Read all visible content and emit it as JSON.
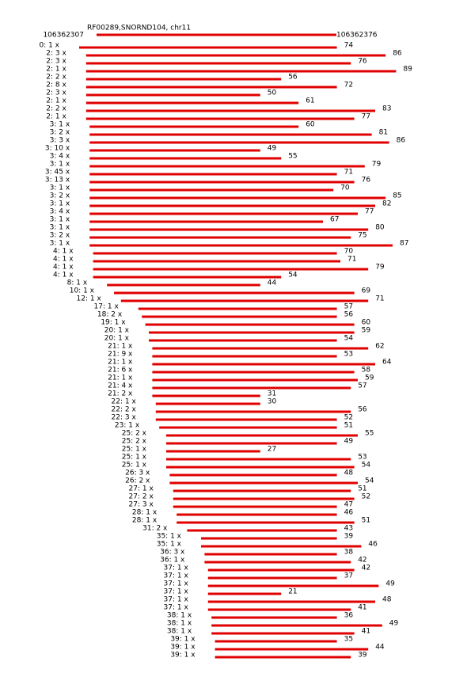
{
  "header": {
    "title": "RF00289,SNORND104, chr11",
    "start": "106362307",
    "end": "106362376"
  },
  "rows": [
    {
      "label": "0: 1 x",
      "length": 74
    },
    {
      "label": "2: 3 x",
      "length": 86
    },
    {
      "label": "2: 3 x",
      "length": 76
    },
    {
      "label": "2: 1 x",
      "length": 89
    },
    {
      "label": "2: 2 x",
      "length": 56
    },
    {
      "label": "2: 8 x",
      "length": 72
    },
    {
      "label": "2: 3 x",
      "length": 50
    },
    {
      "label": "2: 1 x",
      "length": 61
    },
    {
      "label": "2: 2 x",
      "length": 83
    },
    {
      "label": "2: 1 x",
      "length": 77
    },
    {
      "label": "3: 1 x",
      "length": 60
    },
    {
      "label": "3: 2 x",
      "length": 81
    },
    {
      "label": "3: 3 x",
      "length": 86
    },
    {
      "label": "3: 10 x",
      "length": 49
    },
    {
      "label": "3: 4 x",
      "length": 55
    },
    {
      "label": "3: 1 x",
      "length": 79
    },
    {
      "label": "3: 45 x",
      "length": 71
    },
    {
      "label": "3: 13 x",
      "length": 76
    },
    {
      "label": "3: 1 x",
      "length": 70
    },
    {
      "label": "3: 2 x",
      "length": 85
    },
    {
      "label": "3: 1 x",
      "length": 82
    },
    {
      "label": "3: 4 x",
      "length": 77
    },
    {
      "label": "3: 1 x",
      "length": 67
    },
    {
      "label": "3: 1 x",
      "length": 80
    },
    {
      "label": "3: 2 x",
      "length": 75
    },
    {
      "label": "3: 1 x",
      "length": 87
    },
    {
      "label": "4: 1 x",
      "length": 70
    },
    {
      "label": "4: 1 x",
      "length": 71
    },
    {
      "label": "4: 1 x",
      "length": 79
    },
    {
      "label": "4: 1 x",
      "length": 54
    },
    {
      "label": "8: 1 x",
      "length": 44
    },
    {
      "label": "10: 1 x",
      "length": 69
    },
    {
      "label": "12: 1 x",
      "length": 71
    },
    {
      "label": "17: 1 x",
      "length": 57
    },
    {
      "label": "18: 2 x",
      "length": 56
    },
    {
      "label": "19: 1 x",
      "length": 60
    },
    {
      "label": "20: 1 x",
      "length": 59
    },
    {
      "label": "20: 1 x",
      "length": 54
    },
    {
      "label": "21: 1 x",
      "length": 62
    },
    {
      "label": "21: 9 x",
      "length": 53
    },
    {
      "label": "21: 1 x",
      "length": 64
    },
    {
      "label": "21: 6 x",
      "length": 58
    },
    {
      "label": "21: 1 x",
      "length": 59
    },
    {
      "label": "21: 4 x",
      "length": 57
    },
    {
      "label": "21: 2 x",
      "length": 31
    },
    {
      "label": "22: 1 x",
      "length": 30
    },
    {
      "label": "22: 2 x",
      "length": 56
    },
    {
      "label": "22: 3 x",
      "length": 52
    },
    {
      "label": "23: 1 x",
      "length": 51
    },
    {
      "label": "25: 2 x",
      "length": 55
    },
    {
      "label": "25: 2 x",
      "length": 49
    },
    {
      "label": "25: 1 x",
      "length": 27
    },
    {
      "label": "25: 1 x",
      "length": 53
    },
    {
      "label": "25: 1 x",
      "length": 54
    },
    {
      "label": "26: 3 x",
      "length": 48
    },
    {
      "label": "26: 2 x",
      "length": 54
    },
    {
      "label": "27: 1 x",
      "length": 51
    },
    {
      "label": "27: 2 x",
      "length": 52
    },
    {
      "label": "27: 3 x",
      "length": 47
    },
    {
      "label": "28: 1 x",
      "length": 46
    },
    {
      "label": "28: 1 x",
      "length": 51
    },
    {
      "label": "31: 2 x",
      "length": 43
    },
    {
      "label": "35: 1 x",
      "length": 39
    },
    {
      "label": "35: 1 x",
      "length": 46
    },
    {
      "label": "36: 3 x",
      "length": 38
    },
    {
      "label": "36: 1 x",
      "length": 42
    },
    {
      "label": "37: 1 x",
      "length": 42
    },
    {
      "label": "37: 1 x",
      "length": 37
    },
    {
      "label": "37: 1 x",
      "length": 49
    },
    {
      "label": "37: 1 x",
      "length": 21
    },
    {
      "label": "37: 1 x",
      "length": 48
    },
    {
      "label": "37: 1 x",
      "length": 41
    },
    {
      "label": "38: 1 x",
      "length": 36
    },
    {
      "label": "38: 1 x",
      "length": 49
    },
    {
      "label": "38: 1 x",
      "length": 41
    },
    {
      "label": "39: 1 x",
      "length": 35
    },
    {
      "label": "39: 1 x",
      "length": 44
    },
    {
      "label": "39: 1 x",
      "length": 39
    }
  ]
}
